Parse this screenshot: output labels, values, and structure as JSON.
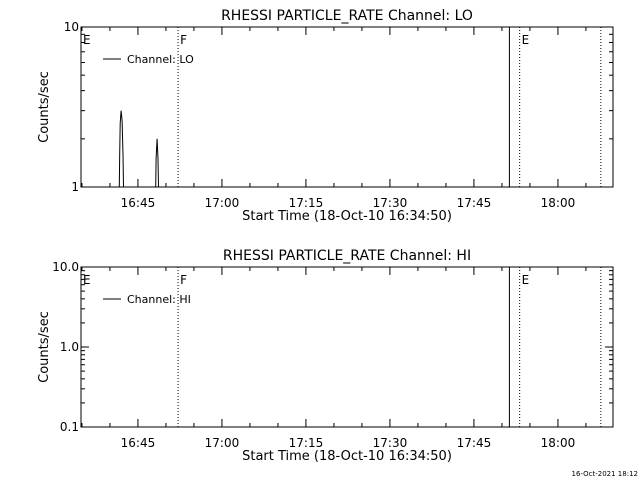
{
  "footer": {
    "timestamp": "16-Oct-2021 18:12"
  },
  "chart_data": [
    {
      "type": "line",
      "title": "RHESSI PARTICLE_RATE Channel: LO",
      "xlabel": "Start Time (18-Oct-10 16:34:50)",
      "ylabel": "Counts/sec",
      "y_scale": "log",
      "ylim": [
        1,
        10
      ],
      "y_ticks": [
        {
          "value": 1,
          "label": "1"
        },
        {
          "value": 10,
          "label": "10"
        }
      ],
      "xlim": [
        "16:34:50",
        "18:09:50"
      ],
      "x_ticks": [
        "16:45",
        "17:00",
        "17:15",
        "17:30",
        "17:45",
        "18:00"
      ],
      "legend": {
        "position": "top-left",
        "entries": [
          "Channel: LO"
        ]
      },
      "series": [
        {
          "name": "Channel: LO",
          "x": [
            "16:41:40",
            "16:41:45",
            "16:41:50",
            "16:42:00",
            "16:42:10",
            "16:42:20",
            "16:42:25",
            "16:48:10",
            "16:48:15",
            "16:48:25",
            "16:48:35",
            "16:48:40"
          ],
          "y": [
            1,
            1.6,
            2.5,
            3.0,
            2.6,
            1.6,
            1,
            1,
            1.5,
            2.0,
            1.5,
            1
          ]
        }
      ],
      "annotations": [
        {
          "label": "E",
          "time": "16:34:50",
          "line": "none"
        },
        {
          "label": "F",
          "time": "16:52:10",
          "line": "dotted"
        },
        {
          "label": "",
          "time": "17:51:20",
          "line": "solid"
        },
        {
          "label": "E",
          "time": "17:53:10",
          "line": "dotted"
        },
        {
          "label": "",
          "time": "18:07:40",
          "line": "dotted"
        }
      ]
    },
    {
      "type": "line",
      "title": "RHESSI PARTICLE_RATE Channel: HI",
      "xlabel": "Start Time (18-Oct-10 16:34:50)",
      "ylabel": "Counts/sec",
      "y_scale": "log",
      "ylim": [
        0.1,
        10
      ],
      "y_ticks": [
        {
          "value": 0.1,
          "label": "0.1"
        },
        {
          "value": 1,
          "label": "1.0"
        },
        {
          "value": 10,
          "label": "10.0"
        }
      ],
      "xlim": [
        "16:34:50",
        "18:09:50"
      ],
      "x_ticks": [
        "16:45",
        "17:00",
        "17:15",
        "17:30",
        "17:45",
        "18:00"
      ],
      "legend": {
        "position": "top-left",
        "entries": [
          "Channel: HI"
        ]
      },
      "series": [
        {
          "name": "Channel: HI",
          "x": [],
          "y": []
        }
      ],
      "annotations": [
        {
          "label": "E",
          "time": "16:34:50",
          "line": "none"
        },
        {
          "label": "F",
          "time": "16:52:10",
          "line": "dotted"
        },
        {
          "label": "",
          "time": "17:51:20",
          "line": "solid"
        },
        {
          "label": "E",
          "time": "17:53:10",
          "line": "dotted"
        },
        {
          "label": "",
          "time": "18:07:40",
          "line": "dotted"
        }
      ]
    }
  ]
}
